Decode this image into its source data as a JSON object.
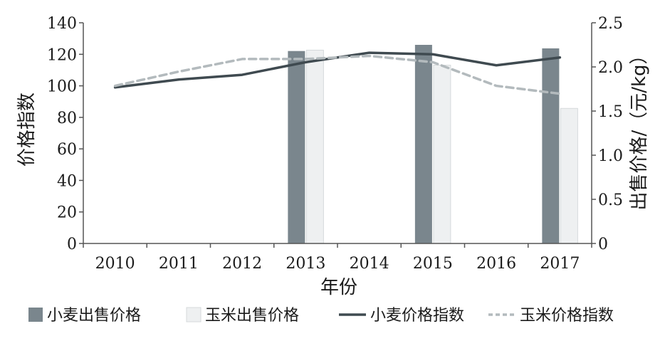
{
  "chart_data": {
    "type": "bar+line",
    "x": [
      "2010",
      "2011",
      "2012",
      "2013",
      "2014",
      "2015",
      "2016",
      "2017"
    ],
    "xlabel": "年份",
    "ylabel_left": "价格指数",
    "ylabel_right": "出售价格/（元/kg）",
    "ylim_left": [
      0,
      140
    ],
    "ylim_right": [
      0,
      2.5
    ],
    "yticks_left": [
      "0",
      "20",
      "40",
      "60",
      "80",
      "100",
      "120",
      "140"
    ],
    "yticks_right": [
      "0",
      "0.5",
      "1.0",
      "1.5",
      "2.0",
      "2.5"
    ],
    "grid": false,
    "legend_position": "bottom",
    "bar_series": [
      {
        "name": "小麦出售价格",
        "axis": "right",
        "color": "#7a868d",
        "x": [
          "2013",
          "2015",
          "2017"
        ],
        "values": [
          2.18,
          2.25,
          2.21
        ]
      },
      {
        "name": "玉米出售价格",
        "axis": "right",
        "color": "#eef0f1",
        "x": [
          "2013",
          "2015",
          "2017"
        ],
        "values": [
          2.19,
          2.02,
          1.53
        ]
      }
    ],
    "line_series": [
      {
        "name": "小麦价格指数",
        "axis": "left",
        "color": "#3f4a50",
        "style": "solid",
        "values": [
          99,
          104,
          107,
          115,
          121,
          120,
          113,
          118
        ]
      },
      {
        "name": "玉米价格指数",
        "axis": "left",
        "color": "#b3babd",
        "style": "dashed",
        "values": [
          100,
          109,
          117,
          117,
          119,
          115,
          100,
          95
        ]
      }
    ]
  }
}
